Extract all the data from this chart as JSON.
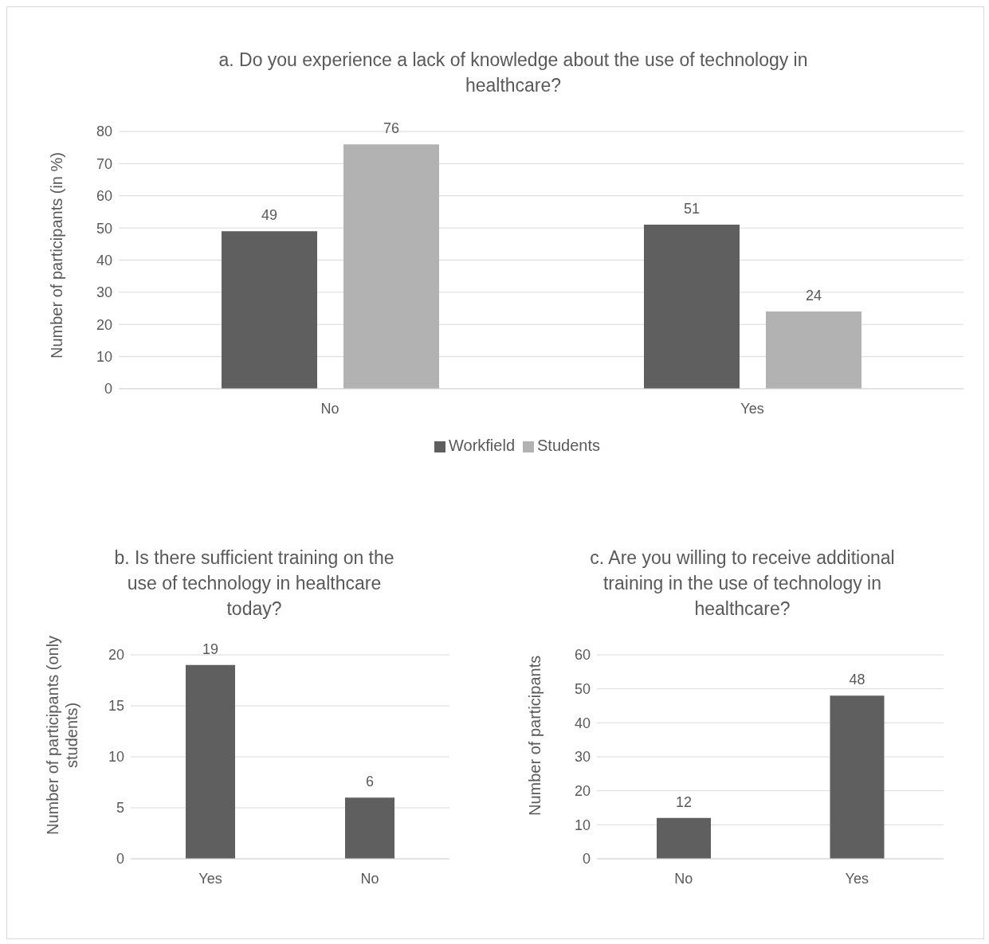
{
  "chart_data": [
    {
      "type": "bar",
      "title": "a. Do you experience a lack of knowledge about the use of technology in healthcare?",
      "ylabel": "Number of participants (in %)",
      "categories": [
        "No",
        "Yes"
      ],
      "series": [
        {
          "name": "Workfield",
          "color": "#5f5f5f",
          "values": [
            49,
            51
          ]
        },
        {
          "name": "Students",
          "color": "#b2b2b2",
          "values": [
            76,
            24
          ]
        }
      ],
      "ylim": [
        0,
        80
      ],
      "yticks": [
        0,
        10,
        20,
        30,
        40,
        50,
        60,
        70,
        80
      ],
      "grid": "y",
      "legend": "bottom",
      "data_labels": true
    },
    {
      "type": "bar",
      "title": "b. Is there sufficient training on the use of technology in healthcare today?",
      "ylabel": "Number of participants (only students)",
      "categories": [
        "Yes",
        "No"
      ],
      "values": [
        19,
        6
      ],
      "color": "#5f5f5f",
      "ylim": [
        0,
        20
      ],
      "yticks": [
        0,
        5,
        10,
        15,
        20
      ],
      "grid": "y",
      "data_labels": true
    },
    {
      "type": "bar",
      "title": "c. Are you willing to receive additional training in the use of technology in healthcare?",
      "ylabel": "Number of participants",
      "categories": [
        "No",
        "Yes"
      ],
      "values": [
        12,
        48
      ],
      "color": "#5f5f5f",
      "ylim": [
        0,
        60
      ],
      "yticks": [
        0,
        10,
        20,
        30,
        40,
        50,
        60
      ],
      "grid": "y",
      "data_labels": true
    }
  ]
}
